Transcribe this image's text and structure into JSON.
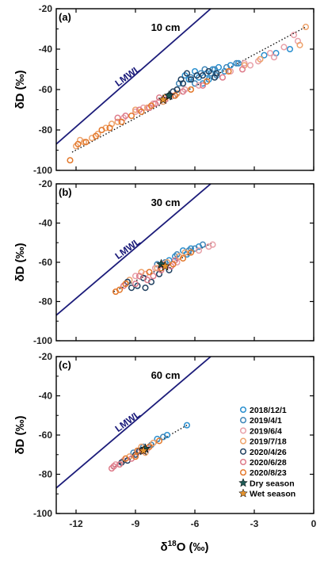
{
  "chart_data": [
    {
      "type": "scatter",
      "panel_label": "(a)",
      "depth_label": "10 cm",
      "line_label": "LMWL",
      "ylabel": "δD (‰)",
      "xlim": [
        -13,
        0
      ],
      "ylim": [
        -100,
        -20
      ],
      "xticks": [],
      "yticks": [
        "-20",
        "-40",
        "-60",
        "-80",
        "-100"
      ],
      "ytick_values": [
        -20,
        -40,
        -60,
        -80,
        -100
      ],
      "lmwl": {
        "x": [
          -13,
          -5.2
        ],
        "y": [
          -87,
          -20
        ]
      },
      "fit_line": {
        "x": [
          -12.2,
          -0.4
        ],
        "y": [
          -91,
          -29
        ]
      },
      "series": [
        {
          "name": "2018/12/1",
          "points": [
            [
              -5.4,
              -52
            ],
            [
              -5.8,
              -54
            ],
            [
              -6.0,
              -51
            ],
            [
              -6.3,
              -55
            ],
            [
              -5.1,
              -50
            ],
            [
              -4.8,
              -49
            ],
            [
              -4.5,
              -51
            ],
            [
              -5.6,
              -57
            ],
            [
              -6.5,
              -53
            ],
            [
              -4.2,
              -48
            ],
            [
              -3.8,
              -47
            ],
            [
              -2.5,
              -43
            ],
            [
              -1.9,
              -42
            ],
            [
              -1.2,
              -40
            ],
            [
              -5.3,
              -55
            ]
          ]
        },
        {
          "name": "2019/4/1",
          "points": [
            [
              -6.2,
              -54
            ],
            [
              -5.7,
              -52
            ],
            [
              -5.0,
              -50
            ],
            [
              -4.4,
              -49
            ],
            [
              -6.8,
              -57
            ],
            [
              -5.5,
              -50
            ],
            [
              -4.9,
              -53
            ],
            [
              -3.9,
              -47
            ],
            [
              -6.0,
              -57
            ],
            [
              -5.2,
              -52
            ]
          ]
        },
        {
          "name": "2019/6/4",
          "points": [
            [
              -6.5,
              -60
            ],
            [
              -7.2,
              -63
            ],
            [
              -8.1,
              -67
            ],
            [
              -9.0,
              -71
            ],
            [
              -9.6,
              -74
            ],
            [
              -5.8,
              -58
            ],
            [
              -4.2,
              -51
            ],
            [
              -3.2,
              -48
            ],
            [
              -2.8,
              -46
            ],
            [
              -2.0,
              -44
            ],
            [
              -1.5,
              -39
            ],
            [
              -1.0,
              -33
            ],
            [
              -0.8,
              -36
            ],
            [
              -7.8,
              -66
            ],
            [
              -8.6,
              -69
            ],
            [
              -3.5,
              -47
            ],
            [
              -2.2,
              -42
            ]
          ]
        },
        {
          "name": "2019/7/18",
          "points": [
            [
              -9.0,
              -70
            ],
            [
              -9.9,
              -76
            ],
            [
              -10.5,
              -79
            ],
            [
              -10.9,
              -82
            ],
            [
              -11.2,
              -84
            ],
            [
              -11.6,
              -86
            ],
            [
              -12.0,
              -88
            ],
            [
              -8.4,
              -69
            ],
            [
              -7.6,
              -66
            ],
            [
              -6.9,
              -62
            ],
            [
              -0.7,
              -38
            ],
            [
              -0.4,
              -29
            ],
            [
              -3.5,
              -48
            ],
            [
              -2.7,
              -45
            ],
            [
              -10.2,
              -77
            ],
            [
              -11.8,
              -85
            ]
          ]
        },
        {
          "name": "2020/4/26",
          "points": [
            [
              -6.2,
              -55
            ],
            [
              -6.6,
              -57
            ],
            [
              -5.9,
              -53
            ],
            [
              -5.3,
              -51
            ],
            [
              -4.9,
              -52
            ],
            [
              -6.9,
              -60
            ],
            [
              -7.3,
              -63
            ],
            [
              -5.6,
              -53
            ],
            [
              -6.4,
              -52
            ],
            [
              -5.0,
              -54
            ],
            [
              -7.1,
              -61
            ],
            [
              -6.7,
              -55
            ]
          ]
        },
        {
          "name": "2020/6/28",
          "points": [
            [
              -8.0,
              -67
            ],
            [
              -8.8,
              -70
            ],
            [
              -9.5,
              -73
            ],
            [
              -7.5,
              -65
            ],
            [
              -7.0,
              -63
            ],
            [
              -6.6,
              -61
            ],
            [
              -5.6,
              -58
            ],
            [
              -4.6,
              -54
            ],
            [
              -3.6,
              -50
            ],
            [
              -9.9,
              -74
            ],
            [
              -8.3,
              -69
            ],
            [
              -7.8,
              -64
            ]
          ]
        },
        {
          "name": "2020/8/23",
          "points": [
            [
              -10.3,
              -79
            ],
            [
              -11.0,
              -83
            ],
            [
              -11.5,
              -86
            ],
            [
              -12.3,
              -95
            ],
            [
              -9.7,
              -76
            ],
            [
              -9.2,
              -73
            ],
            [
              -8.7,
              -71
            ],
            [
              -8.2,
              -68
            ],
            [
              -7.5,
              -64
            ],
            [
              -7.0,
              -63
            ],
            [
              -6.2,
              -60
            ],
            [
              -5.4,
              -56
            ],
            [
              -4.3,
              -51
            ],
            [
              -10.7,
              -80
            ],
            [
              -11.9,
              -87
            ]
          ]
        }
      ],
      "stars": [
        {
          "name": "Dry season",
          "x": -7.3,
          "y": -63
        },
        {
          "name": "Wet season",
          "x": -7.6,
          "y": -65
        }
      ]
    },
    {
      "type": "scatter",
      "panel_label": "(b)",
      "depth_label": "30 cm",
      "line_label": "LMWL",
      "ylabel": "δD (‰)",
      "xlim": [
        -13,
        0
      ],
      "ylim": [
        -100,
        -20
      ],
      "xticks": [],
      "yticks": [
        "-20",
        "-40",
        "-60",
        "-80",
        "-100"
      ],
      "ytick_values": [
        -20,
        -40,
        -60,
        -80,
        -100
      ],
      "lmwl": {
        "x": [
          -13,
          -5.2
        ],
        "y": [
          -87,
          -20
        ]
      },
      "fit_line": {
        "x": [
          -10.1,
          -5.1
        ],
        "y": [
          -75,
          -50
        ]
      },
      "series": [
        {
          "name": "2018/12/1",
          "points": [
            [
              -6.6,
              -54
            ],
            [
              -6.2,
              -53
            ],
            [
              -5.8,
              -52
            ],
            [
              -7.0,
              -57
            ],
            [
              -6.4,
              -56
            ],
            [
              -7.3,
              -59
            ]
          ]
        },
        {
          "name": "2019/4/1",
          "points": [
            [
              -6.9,
              -56
            ],
            [
              -6.3,
              -54
            ],
            [
              -7.5,
              -60
            ],
            [
              -7.9,
              -61
            ],
            [
              -6.0,
              -53
            ],
            [
              -5.6,
              -51
            ]
          ]
        },
        {
          "name": "2019/6/4",
          "points": [
            [
              -8.5,
              -66
            ],
            [
              -8.0,
              -63
            ],
            [
              -7.6,
              -61
            ],
            [
              -9.0,
              -67
            ],
            [
              -6.9,
              -60
            ],
            [
              -5.8,
              -54
            ],
            [
              -5.3,
              -52
            ],
            [
              -5.1,
              -51
            ]
          ]
        },
        {
          "name": "2019/7/18",
          "points": [
            [
              -8.7,
              -65
            ],
            [
              -7.4,
              -60
            ],
            [
              -6.8,
              -57
            ],
            [
              -6.5,
              -55
            ],
            [
              -7.9,
              -63
            ],
            [
              -9.3,
              -69
            ]
          ]
        },
        {
          "name": "2020/4/26",
          "points": [
            [
              -9.4,
              -70
            ],
            [
              -8.9,
              -72
            ],
            [
              -8.5,
              -73
            ],
            [
              -9.2,
              -73
            ],
            [
              -8.2,
              -70
            ],
            [
              -7.8,
              -66
            ],
            [
              -7.3,
              -64
            ],
            [
              -8.6,
              -68
            ]
          ]
        },
        {
          "name": "2020/6/28",
          "points": [
            [
              -9.0,
              -71
            ],
            [
              -8.4,
              -69
            ],
            [
              -8.1,
              -67
            ],
            [
              -7.7,
              -64
            ],
            [
              -7.2,
              -62
            ],
            [
              -9.6,
              -72
            ],
            [
              -8.8,
              -67
            ],
            [
              -7.0,
              -59
            ]
          ]
        },
        {
          "name": "2020/8/23",
          "points": [
            [
              -9.8,
              -74
            ],
            [
              -10.0,
              -75
            ],
            [
              -9.5,
              -71
            ],
            [
              -8.3,
              -65
            ],
            [
              -7.1,
              -61
            ],
            [
              -6.6,
              -58
            ],
            [
              -6.2,
              -55
            ],
            [
              -7.7,
              -63
            ]
          ]
        }
      ],
      "stars": [
        {
          "name": "Dry season",
          "x": -7.7,
          "y": -61
        },
        {
          "name": "Wet season",
          "x": -7.5,
          "y": -62
        }
      ]
    },
    {
      "type": "scatter",
      "panel_label": "(c)",
      "depth_label": "60 cm",
      "line_label": "LMWL",
      "ylabel": "δD (‰)",
      "xlabel": "δ18O (‰)",
      "xlim": [
        -13,
        0
      ],
      "ylim": [
        -100,
        -20
      ],
      "xticks": [
        "-12",
        "-9",
        "-6",
        "-3",
        "0"
      ],
      "xtick_values": [
        -12,
        -9,
        -6,
        -3,
        0
      ],
      "yticks": [
        "-20",
        "-40",
        "-60",
        "-80",
        "-100"
      ],
      "ytick_values": [
        -20,
        -40,
        -60,
        -80,
        -100
      ],
      "lmwl": {
        "x": [
          -13,
          -5.2
        ],
        "y": [
          -87,
          -20
        ]
      },
      "fit_line": {
        "x": [
          -10.2,
          -6.4
        ],
        "y": [
          -77,
          -55
        ]
      },
      "series": [
        {
          "name": "2018/12/1",
          "points": [
            [
              -6.4,
              -55
            ],
            [
              -7.4,
              -60
            ],
            [
              -7.9,
              -62
            ]
          ]
        },
        {
          "name": "2019/4/1",
          "points": [
            [
              -8.6,
              -66
            ],
            [
              -8.2,
              -65
            ],
            [
              -9.1,
              -69
            ],
            [
              -7.6,
              -61
            ]
          ]
        },
        {
          "name": "2019/6/4",
          "points": [
            [
              -9.6,
              -73
            ],
            [
              -10.0,
              -75
            ],
            [
              -8.9,
              -69
            ],
            [
              -8.4,
              -67
            ]
          ]
        },
        {
          "name": "2019/7/18",
          "points": [
            [
              -8.7,
              -66
            ],
            [
              -8.1,
              -64
            ],
            [
              -9.3,
              -71
            ],
            [
              -8.5,
              -69
            ]
          ]
        },
        {
          "name": "2020/4/26",
          "points": [
            [
              -9.4,
              -73
            ],
            [
              -9.0,
              -70
            ],
            [
              -8.8,
              -68
            ],
            [
              -9.7,
              -74
            ]
          ]
        },
        {
          "name": "2020/6/28",
          "points": [
            [
              -10.2,
              -77
            ],
            [
              -9.8,
              -75
            ],
            [
              -9.2,
              -72
            ],
            [
              -8.6,
              -68
            ],
            [
              -10.1,
              -76
            ]
          ]
        },
        {
          "name": "2020/8/23",
          "points": [
            [
              -9.5,
              -72
            ],
            [
              -8.9,
              -68
            ],
            [
              -8.3,
              -66
            ],
            [
              -7.8,
              -63
            ],
            [
              -9.0,
              -71
            ]
          ]
        }
      ],
      "stars": [
        {
          "name": "Dry season",
          "x": -8.5,
          "y": -67
        },
        {
          "name": "Wet season",
          "x": -8.6,
          "y": -68
        }
      ]
    }
  ],
  "legend": {
    "entries": [
      "2018/12/1",
      "2019/4/1",
      "2019/6/4",
      "2019/7/18",
      "2020/4/26",
      "2020/6/28",
      "2020/8/23",
      "Dry season",
      "Wet season"
    ],
    "colors": [
      "#2a8fcf",
      "#3f86b8",
      "#e8a0a8",
      "#eea36c",
      "#1f3f5f",
      "#de7b8a",
      "#e3782b",
      "#1f5a56",
      "#e3922f"
    ]
  },
  "colors": {
    "lmwl": "#1c1c7a",
    "fit": "#000000",
    "2018/12/1": "#2a8fcf",
    "2019/4/1": "#3f86b8",
    "2019/6/4": "#e8a0a8",
    "2019/7/18": "#eea36c",
    "2020/4/26": "#1f3f5f",
    "2020/6/28": "#de7b8a",
    "2020/8/23": "#e3782b",
    "Dry season": "#1f5a56",
    "Wet season": "#e3922f"
  }
}
